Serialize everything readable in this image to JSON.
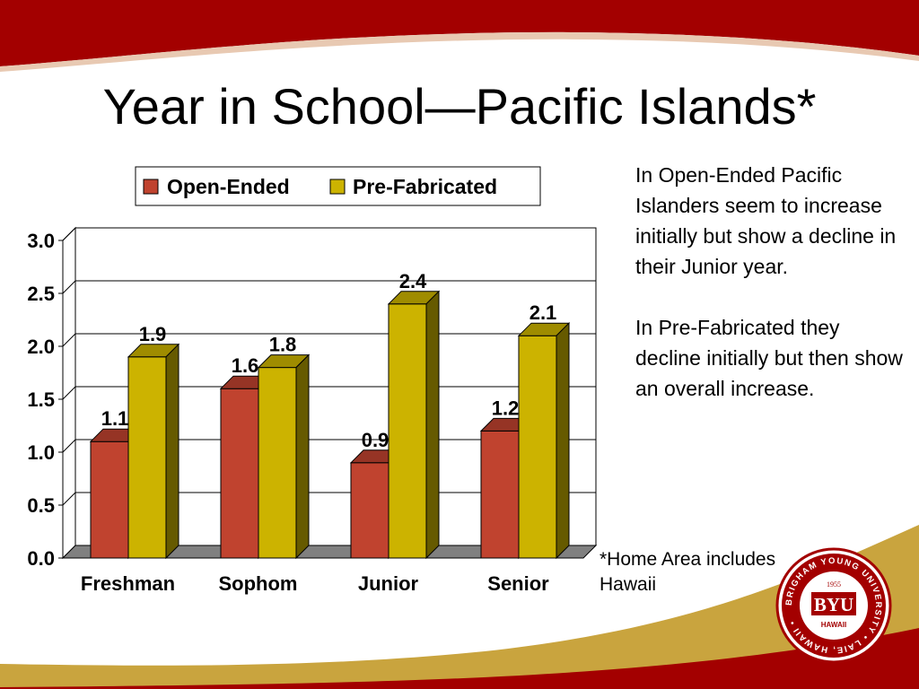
{
  "slide": {
    "title": "Year in School—Pacific Islands*",
    "notes": [
      "In Open-Ended Pacific Islanders seem to increase initially but show a decline in their Junior year.",
      "In Pre-Fabricated they decline initially but then show an overall increase."
    ],
    "footnote": "*Home Area includes Hawaii",
    "logo": {
      "year": "1955",
      "acronym": "BYU",
      "campus": "HAWAII",
      "ring_text": "BRIGHAM YOUNG UNIVERSITY • LAIE, HAWAII •"
    },
    "colors": {
      "banner": "#a30000",
      "accent_gold": "#c8a23a"
    }
  },
  "chart_data": {
    "type": "bar",
    "title": "",
    "xlabel": "",
    "ylabel": "",
    "categories": [
      "Freshman",
      "Sophom",
      "Junior",
      "Senior"
    ],
    "series": [
      {
        "name": "Open-Ended",
        "values": [
          1.1,
          1.6,
          0.9,
          1.2
        ],
        "value_labels": [
          "1.1",
          "1.6",
          "0.9",
          "1.2"
        ],
        "color": "#c0432f"
      },
      {
        "name": "Pre-Fabricated",
        "values": [
          1.9,
          1.8,
          2.4,
          2.1
        ],
        "value_labels": [
          "1.9",
          "1.8",
          "2.4",
          "2.1"
        ],
        "color": "#ccb300"
      }
    ],
    "ylim": [
      0,
      3.0
    ],
    "yticks": [
      "0.0",
      "0.5",
      "1.0",
      "1.5",
      "2.0",
      "2.5",
      "3.0"
    ],
    "grid": true,
    "legend": "top",
    "style": "3d-clustered"
  }
}
